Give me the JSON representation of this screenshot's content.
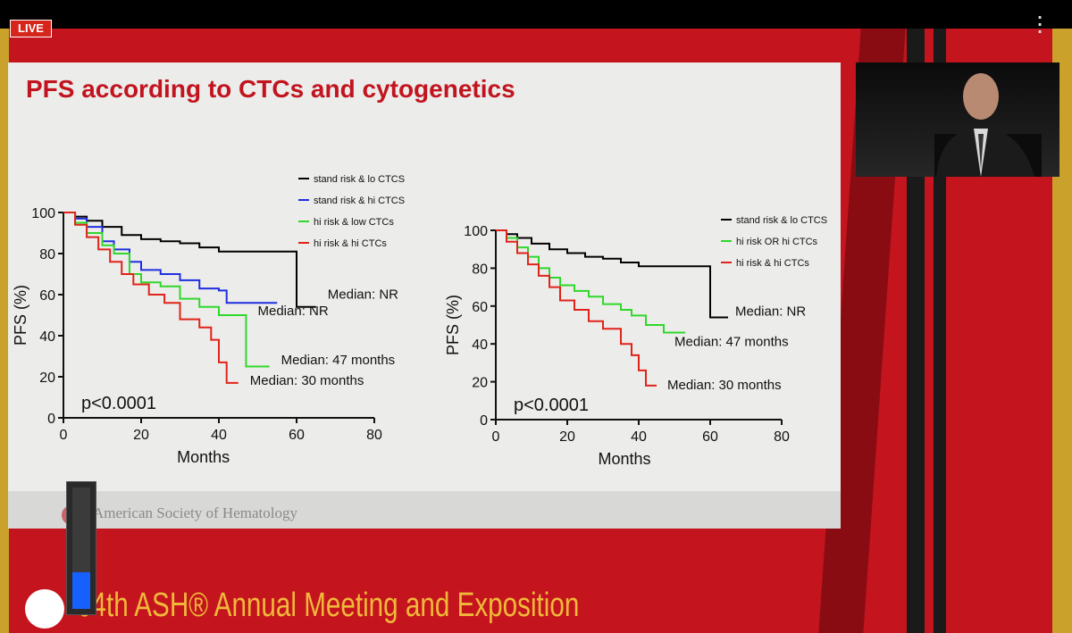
{
  "live_badge": "LIVE",
  "menu_icon": "vertical-ellipsis-icon",
  "slide": {
    "title": "PFS according to CTCs and cytogenetics",
    "footer": "American Society of Hematology"
  },
  "conference_title": "64th ASH® Annual Meeting and Exposition",
  "volume": {
    "level": 0.3
  },
  "colors": {
    "black": "#000000",
    "blue": "#1f2fe0",
    "green": "#2fd82a",
    "red": "#e0231a",
    "title_red": "#c2141f",
    "gold": "#f0b93a"
  },
  "chart_data": [
    {
      "type": "line",
      "subtype": "kaplan-meier",
      "xlabel": "Months",
      "ylabel": "PFS (%)",
      "xlim": [
        0,
        80
      ],
      "ylim": [
        0,
        100
      ],
      "xticks": [
        "0",
        "20",
        "40",
        "60",
        "80"
      ],
      "yticks": [
        "0",
        "20",
        "40",
        "60",
        "80",
        "100"
      ],
      "p_value": "p<0.0001",
      "legend_position": "top-right",
      "series": [
        {
          "name": "stand risk & lo CTCS",
          "color": "black",
          "x": [
            0,
            3,
            6,
            10,
            15,
            20,
            25,
            30,
            35,
            40,
            48,
            55,
            60,
            60,
            65
          ],
          "y": [
            100,
            98,
            96,
            93,
            89,
            87,
            86,
            85,
            83,
            81,
            81,
            81,
            81,
            54,
            54
          ]
        },
        {
          "name": "stand risk & hi CTCS",
          "color": "blue",
          "x": [
            0,
            3,
            6,
            10,
            13,
            17,
            20,
            25,
            30,
            35,
            40,
            42,
            50,
            55
          ],
          "y": [
            100,
            97,
            93,
            86,
            82,
            76,
            72,
            70,
            67,
            63,
            62,
            56,
            56,
            56
          ]
        },
        {
          "name": "hi risk & low CTCs",
          "color": "green",
          "x": [
            0,
            3,
            6,
            10,
            13,
            17,
            20,
            25,
            30,
            35,
            40,
            45,
            47,
            53
          ],
          "y": [
            100,
            95,
            90,
            84,
            80,
            70,
            66,
            64,
            58,
            54,
            50,
            50,
            25,
            25
          ]
        },
        {
          "name": "hi risk & hi CTCs",
          "color": "red",
          "x": [
            0,
            3,
            6,
            9,
            12,
            15,
            18,
            22,
            26,
            30,
            35,
            38,
            40,
            42,
            45
          ],
          "y": [
            100,
            94,
            88,
            82,
            76,
            70,
            65,
            60,
            56,
            48,
            44,
            38,
            27,
            17,
            17
          ]
        }
      ],
      "annotations": [
        {
          "text": "Median: NR",
          "x": 68,
          "y": 58
        },
        {
          "text": "Median: NR",
          "x": 50,
          "y": 50
        },
        {
          "text": "Median: 47 months",
          "x": 56,
          "y": 26
        },
        {
          "text": "Median: 30 months",
          "x": 48,
          "y": 16
        }
      ]
    },
    {
      "type": "line",
      "subtype": "kaplan-meier",
      "xlabel": "Months",
      "ylabel": "PFS (%)",
      "xlim": [
        0,
        80
      ],
      "ylim": [
        0,
        100
      ],
      "xticks": [
        "0",
        "20",
        "40",
        "60",
        "80"
      ],
      "yticks": [
        "0",
        "20",
        "40",
        "60",
        "80",
        "100"
      ],
      "p_value": "p<0.0001",
      "legend_position": "top-right",
      "series": [
        {
          "name": "stand risk & lo CTCS",
          "color": "black",
          "x": [
            0,
            3,
            6,
            10,
            15,
            20,
            25,
            30,
            35,
            40,
            48,
            55,
            60,
            60,
            65
          ],
          "y": [
            100,
            98,
            96,
            93,
            90,
            88,
            86,
            85,
            83,
            81,
            81,
            81,
            81,
            54,
            54
          ]
        },
        {
          "name": "hi risk OR hi CTCs",
          "color": "green",
          "x": [
            0,
            3,
            6,
            9,
            12,
            15,
            18,
            22,
            26,
            30,
            35,
            38,
            42,
            47,
            53
          ],
          "y": [
            100,
            96,
            91,
            86,
            80,
            75,
            71,
            68,
            65,
            61,
            58,
            55,
            50,
            46,
            46
          ]
        },
        {
          "name": "hi risk & hi CTCs",
          "color": "red",
          "x": [
            0,
            3,
            6,
            9,
            12,
            15,
            18,
            22,
            26,
            30,
            35,
            38,
            40,
            42,
            45
          ],
          "y": [
            100,
            94,
            88,
            82,
            76,
            70,
            63,
            58,
            52,
            48,
            40,
            34,
            26,
            18,
            18
          ]
        }
      ],
      "annotations": [
        {
          "text": "Median: NR",
          "x": 67,
          "y": 55
        },
        {
          "text": "Median: 47 months",
          "x": 50,
          "y": 39
        },
        {
          "text": "Median: 30 months",
          "x": 48,
          "y": 16
        }
      ]
    }
  ]
}
